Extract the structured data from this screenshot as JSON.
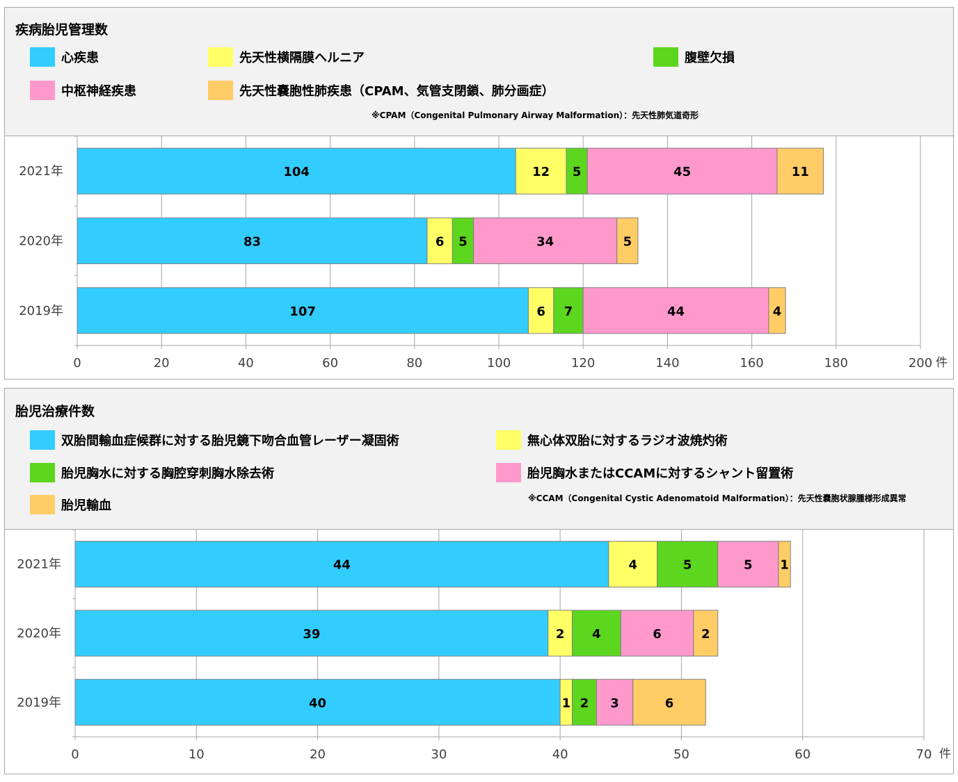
{
  "colors": {
    "cyan": "#33ccff",
    "yellow": "#ffff66",
    "green": "#5cd61e",
    "pink": "#ff99cc",
    "orange": "#ffcc66",
    "grid": "#a6a6a6",
    "panel_bg": "#f2f2f2"
  },
  "panels": [
    {
      "title": "疾病胎児管理数",
      "legend": [
        {
          "label": "心疾患",
          "color": "#33ccff"
        },
        {
          "label": "先天性横隔膜ヘルニア",
          "color": "#ffff66"
        },
        {
          "label": "腹壁欠損",
          "color": "#5cd61e"
        },
        {
          "label": "中枢神経疾患",
          "color": "#ff99cc"
        },
        {
          "label": "先天性嚢胞性肺疾患（CPAM、気管支閉鎖、肺分画症）",
          "color": "#ffcc66"
        }
      ],
      "note": "※CPAM（Congenital Pulmonary Airway Malformation）：先天性肺気道奇形",
      "x_unit": "件"
    },
    {
      "title": "胎児治療件数",
      "legend": [
        {
          "label": "双胎間輸血症候群に対する胎児鏡下吻合血管レーザー凝固術",
          "color": "#33ccff"
        },
        {
          "label": "無心体双胎に対するラジオ波焼灼術",
          "color": "#ffff66"
        },
        {
          "label": "胎児胸水に対する胸腔穿刺胸水除去術",
          "color": "#5cd61e"
        },
        {
          "label": "胎児胸水またはCCAMに対するシャント留置術",
          "color": "#ff99cc"
        },
        {
          "label": "胎児輸血",
          "color": "#ffcc66"
        }
      ],
      "note": "※CCAM（Congenital Cystic Adenomatoid Malformation）：先天性嚢胞状腺腫様形成異常",
      "x_unit": "件"
    }
  ],
  "chart_data": [
    {
      "type": "bar",
      "orientation": "horizontal",
      "stacked": true,
      "title": "疾病胎児管理数",
      "categories": [
        "2021年",
        "2020年",
        "2019年"
      ],
      "series": [
        {
          "name": "心疾患",
          "values": [
            104,
            83,
            107
          ],
          "color": "#33ccff"
        },
        {
          "name": "先天性横隔膜ヘルニア",
          "values": [
            12,
            6,
            6
          ],
          "color": "#ffff66"
        },
        {
          "name": "腹壁欠損",
          "values": [
            5,
            5,
            7
          ],
          "color": "#5cd61e"
        },
        {
          "name": "中枢神経疾患",
          "values": [
            45,
            34,
            44
          ],
          "color": "#ff99cc"
        },
        {
          "name": "先天性嚢胞性肺疾患（CPAM、気管支閉鎖、肺分画症）",
          "values": [
            11,
            5,
            4
          ],
          "color": "#ffcc66"
        }
      ],
      "xlim": [
        0,
        200
      ],
      "xticks": [
        0,
        20,
        40,
        60,
        80,
        100,
        120,
        140,
        160,
        180,
        200
      ],
      "xunit": "件",
      "grid": "vertical",
      "legend_position": "top"
    },
    {
      "type": "bar",
      "orientation": "horizontal",
      "stacked": true,
      "title": "胎児治療件数",
      "categories": [
        "2021年",
        "2020年",
        "2019年"
      ],
      "series": [
        {
          "name": "双胎間輸血症候群に対する胎児鏡下吻合血管レーザー凝固術",
          "values": [
            44,
            39,
            40
          ],
          "color": "#33ccff"
        },
        {
          "name": "無心体双胎に対するラジオ波焼灼術",
          "values": [
            4,
            2,
            1
          ],
          "color": "#ffff66"
        },
        {
          "name": "胎児胸水に対する胸腔穿刺胸水除去術",
          "values": [
            5,
            4,
            2
          ],
          "color": "#5cd61e"
        },
        {
          "name": "胎児胸水またはCCAMに対するシャント留置術",
          "values": [
            5,
            6,
            3
          ],
          "color": "#ff99cc"
        },
        {
          "name": "胎児輸血",
          "values": [
            1,
            2,
            6
          ],
          "color": "#ffcc66"
        }
      ],
      "xlim": [
        0,
        70
      ],
      "xticks": [
        0,
        10,
        20,
        30,
        40,
        50,
        60,
        70
      ],
      "xunit": "件",
      "grid": "vertical",
      "legend_position": "top"
    }
  ]
}
